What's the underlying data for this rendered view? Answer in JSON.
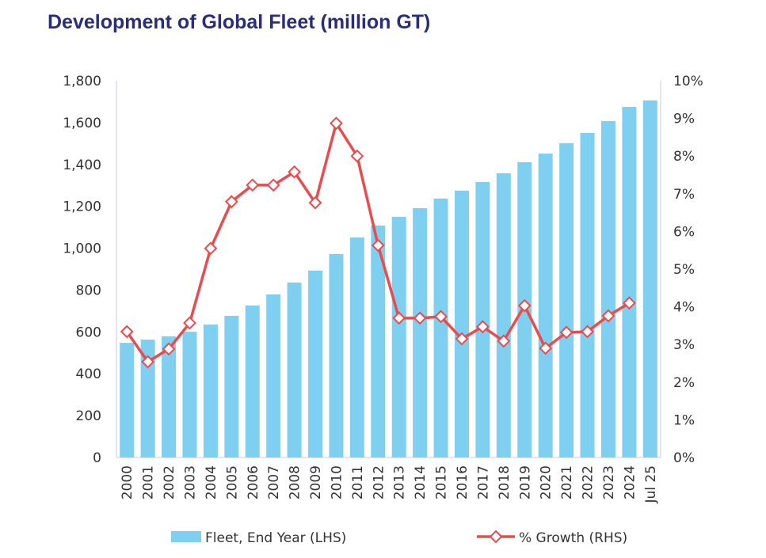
{
  "chart_data": {
    "type": "bar+line",
    "title": "Development of Global Fleet (million GT)",
    "categories": [
      "2000",
      "2001",
      "2002",
      "2003",
      "2004",
      "2005",
      "2006",
      "2007",
      "2008",
      "2009",
      "2010",
      "2011",
      "2012",
      "2013",
      "2014",
      "2015",
      "2016",
      "2017",
      "2018",
      "2019",
      "2020",
      "2021",
      "2022",
      "2023",
      "2024",
      "Jul 25"
    ],
    "series": [
      {
        "name": "Fleet, End Year (LHS)",
        "type": "bar",
        "axis": "left",
        "color": "#7fd0f0",
        "values": [
          548,
          563,
          579,
          601,
          635,
          677,
          726,
          779,
          836,
          893,
          972,
          1051,
          1108,
          1150,
          1191,
          1237,
          1275,
          1316,
          1358,
          1411,
          1452,
          1502,
          1551,
          1607,
          1675,
          1706
        ]
      },
      {
        "name": "% Growth (RHS)",
        "type": "line",
        "axis": "right",
        "color": "#e84c4f",
        "values": [
          3.34,
          2.54,
          2.88,
          3.57,
          5.55,
          6.79,
          7.23,
          7.23,
          7.58,
          6.76,
          8.87,
          8.0,
          5.63,
          3.7,
          3.7,
          3.74,
          3.15,
          3.47,
          3.09,
          4.03,
          2.9,
          3.32,
          3.34,
          3.76,
          4.1,
          null
        ]
      }
    ],
    "ylim_left": [
      0,
      1800
    ],
    "yticks_left": [
      "0",
      "200",
      "400",
      "600",
      "800",
      "1,000",
      "1,200",
      "1,400",
      "1,600",
      "1,800"
    ],
    "ylim_right": [
      0,
      10
    ],
    "yticks_right": [
      "0%",
      "1%",
      "2%",
      "3%",
      "4%",
      "5%",
      "6%",
      "7%",
      "8%",
      "9%",
      "10%"
    ],
    "grid": false,
    "legend_position": "bottom"
  }
}
